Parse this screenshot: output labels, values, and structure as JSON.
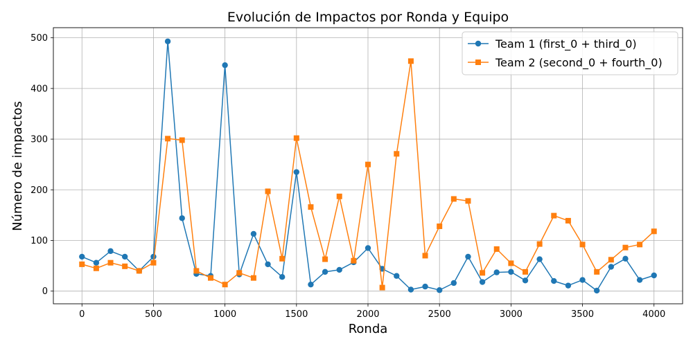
{
  "chart_data": {
    "type": "line",
    "title": "Evolución de Impactos por Ronda y Equipo",
    "xlabel": "Ronda",
    "ylabel": "Número de impactos",
    "xlim": [
      -200,
      4200
    ],
    "ylim": [
      -25,
      520
    ],
    "x_ticks": [
      0,
      500,
      1000,
      1500,
      2000,
      2500,
      3000,
      3500,
      4000
    ],
    "y_ticks": [
      0,
      100,
      200,
      300,
      400,
      500
    ],
    "grid": true,
    "legend_position": "top-right",
    "x": [
      0,
      100,
      200,
      300,
      400,
      500,
      600,
      700,
      800,
      900,
      1000,
      1100,
      1200,
      1300,
      1400,
      1500,
      1600,
      1700,
      1800,
      1900,
      2000,
      2100,
      2200,
      2300,
      2400,
      2500,
      2600,
      2700,
      2800,
      2900,
      3000,
      3100,
      3200,
      3300,
      3400,
      3500,
      3600,
      3700,
      3800,
      3900,
      4000
    ],
    "series": [
      {
        "name": "Team 1 (first_0 + third_0)",
        "color": "#1f77b4",
        "marker": "circle",
        "values": [
          68,
          56,
          79,
          68,
          40,
          68,
          493,
          144,
          34,
          30,
          446,
          33,
          113,
          53,
          28,
          235,
          13,
          38,
          42,
          57,
          85,
          44,
          30,
          3,
          9,
          2,
          16,
          68,
          18,
          37,
          38,
          21,
          63,
          20,
          11,
          22,
          1,
          48,
          64,
          22,
          31
        ]
      },
      {
        "name": "Team 2 (second_0 + fourth_0)",
        "color": "#ff7f0e",
        "marker": "square",
        "values": [
          53,
          45,
          56,
          49,
          40,
          56,
          301,
          298,
          40,
          26,
          13,
          36,
          26,
          197,
          64,
          302,
          166,
          63,
          187,
          60,
          250,
          7,
          271,
          454,
          70,
          128,
          182,
          178,
          36,
          83,
          55,
          38,
          93,
          149,
          139,
          92,
          38,
          62,
          86,
          92,
          118
        ]
      }
    ]
  }
}
